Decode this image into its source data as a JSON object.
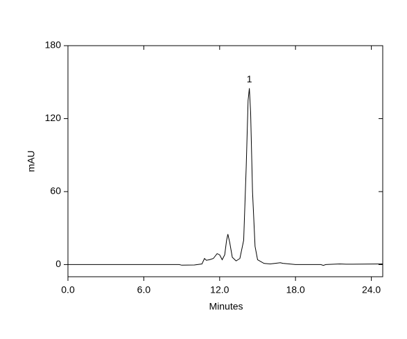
{
  "chart_data": {
    "type": "line",
    "x_label": "Minutes",
    "y_label": "mAU",
    "xlim": [
      0,
      24.9
    ],
    "ylim": [
      -10,
      180
    ],
    "xticks": [
      {
        "value": 0,
        "label": "0.0"
      },
      {
        "value": 6,
        "label": "6.0"
      },
      {
        "value": 12,
        "label": "12.0"
      },
      {
        "value": 18,
        "label": "18.0"
      },
      {
        "value": 24,
        "label": "24.0"
      }
    ],
    "yticks": [
      0,
      60,
      120,
      180
    ],
    "series": [
      {
        "color": "#000000",
        "x": [
          0,
          8.8,
          9.0,
          10.0,
          10.6,
          10.8,
          10.95,
          11.2,
          11.5,
          11.8,
          12.0,
          12.2,
          12.4,
          12.55,
          12.65,
          12.8,
          13.0,
          13.3,
          13.6,
          13.9,
          14.1,
          14.25,
          14.35,
          14.45,
          14.6,
          14.8,
          15.0,
          15.5,
          16.0,
          16.8,
          17.0,
          18.0,
          20.0,
          20.2,
          20.4,
          21.5,
          22.0,
          24.9
        ],
        "values": [
          0,
          0,
          -0.5,
          -0.3,
          0.5,
          5,
          3.5,
          4,
          5,
          9,
          8,
          4,
          8,
          20,
          25,
          18,
          6,
          3,
          5,
          20,
          80,
          135,
          145,
          125,
          60,
          15,
          4,
          1,
          0.5,
          1.5,
          1,
          0,
          0,
          -0.7,
          0,
          0.5,
          0.3,
          0.5
        ]
      }
    ],
    "annotations": [
      {
        "text": "1",
        "x": 14.35,
        "y": 152
      }
    ]
  }
}
